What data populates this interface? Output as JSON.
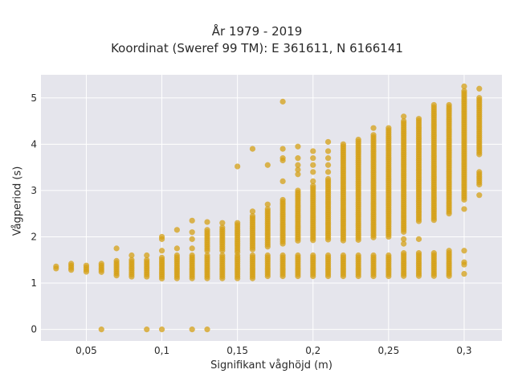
{
  "chart_data": {
    "type": "scatter",
    "title": "År 1979 - 2019",
    "subtitle": "Koordinat (Sweref 99 TM): E 361611, N 6166141",
    "xlabel": "Signifikant våghöjd (m)",
    "ylabel": "Vågperiod (s)",
    "xlim": [
      0.02,
      0.325
    ],
    "ylim": [
      -0.25,
      5.5
    ],
    "xticks": [
      {
        "value": 0.05,
        "label": "0,05"
      },
      {
        "value": 0.1,
        "label": "0,1"
      },
      {
        "value": 0.15,
        "label": "0,15"
      },
      {
        "value": 0.2,
        "label": "0,2"
      },
      {
        "value": 0.25,
        "label": "0,25"
      },
      {
        "value": 0.3,
        "label": "0,3"
      }
    ],
    "yticks": [
      {
        "value": 0,
        "label": "0"
      },
      {
        "value": 1,
        "label": "1"
      },
      {
        "value": 2,
        "label": "2"
      },
      {
        "value": 3,
        "label": "3"
      },
      {
        "value": 4,
        "label": "4"
      },
      {
        "value": 5,
        "label": "5"
      }
    ],
    "grid": true,
    "background": "#e5e5ec",
    "point_color": "#d4a017",
    "columns": [
      {
        "x": 0.03,
        "ranges": [
          [
            1.3,
            1.36
          ]
        ],
        "points": []
      },
      {
        "x": 0.04,
        "ranges": [
          [
            1.28,
            1.42
          ]
        ],
        "points": []
      },
      {
        "x": 0.05,
        "ranges": [
          [
            1.22,
            1.38
          ]
        ],
        "points": []
      },
      {
        "x": 0.06,
        "ranges": [
          [
            1.2,
            1.42
          ]
        ],
        "points": [
          0
        ]
      },
      {
        "x": 0.07,
        "ranges": [
          [
            1.14,
            1.48
          ]
        ],
        "points": [
          1.75
        ]
      },
      {
        "x": 0.08,
        "ranges": [
          [
            1.12,
            1.5
          ]
        ],
        "points": [
          1.6
        ]
      },
      {
        "x": 0.09,
        "ranges": [
          [
            1.1,
            1.5
          ]
        ],
        "points": [
          0,
          1.6
        ]
      },
      {
        "x": 0.1,
        "ranges": [
          [
            1.08,
            1.55
          ]
        ],
        "points": [
          0,
          1.7,
          1.95,
          2.0
        ]
      },
      {
        "x": 0.11,
        "ranges": [
          [
            1.08,
            1.6
          ]
        ],
        "points": [
          1.75,
          2.15
        ]
      },
      {
        "x": 0.12,
        "ranges": [
          [
            1.08,
            1.6
          ]
        ],
        "points": [
          0,
          1.75,
          1.95,
          2.1,
          2.35
        ]
      },
      {
        "x": 0.13,
        "ranges": [
          [
            1.08,
            1.6
          ],
          [
            1.7,
            2.15
          ]
        ],
        "points": [
          0,
          2.32
        ]
      },
      {
        "x": 0.14,
        "ranges": [
          [
            1.08,
            1.6
          ],
          [
            1.7,
            2.2
          ]
        ],
        "points": [
          2.3
        ]
      },
      {
        "x": 0.15,
        "ranges": [
          [
            1.08,
            1.6
          ],
          [
            1.65,
            2.3
          ]
        ],
        "points": [
          3.52
        ]
      },
      {
        "x": 0.16,
        "ranges": [
          [
            1.1,
            1.6
          ],
          [
            1.7,
            2.45
          ]
        ],
        "points": [
          2.55,
          3.9
        ]
      },
      {
        "x": 0.17,
        "ranges": [
          [
            1.12,
            1.6
          ],
          [
            1.75,
            2.6
          ]
        ],
        "points": [
          2.7,
          3.55
        ]
      },
      {
        "x": 0.18,
        "ranges": [
          [
            1.12,
            1.6
          ],
          [
            1.85,
            2.8
          ]
        ],
        "points": [
          3.2,
          3.65,
          3.7,
          3.9,
          4.92
        ]
      },
      {
        "x": 0.19,
        "ranges": [
          [
            1.12,
            1.6
          ],
          [
            1.9,
            3.0
          ]
        ],
        "points": [
          3.35,
          3.45,
          3.55,
          3.7,
          3.95
        ]
      },
      {
        "x": 0.2,
        "ranges": [
          [
            1.12,
            1.6
          ],
          [
            1.9,
            3.1
          ]
        ],
        "points": [
          3.2,
          3.4,
          3.55,
          3.7,
          3.85
        ]
      },
      {
        "x": 0.21,
        "ranges": [
          [
            1.12,
            1.6
          ],
          [
            1.9,
            3.25
          ]
        ],
        "points": [
          3.4,
          3.55,
          3.7,
          3.85,
          4.05
        ]
      },
      {
        "x": 0.22,
        "ranges": [
          [
            1.12,
            1.6
          ],
          [
            1.9,
            3.5
          ],
          [
            3.55,
            4.0
          ]
        ],
        "points": []
      },
      {
        "x": 0.23,
        "ranges": [
          [
            1.12,
            1.6
          ],
          [
            1.9,
            4.1
          ]
        ],
        "points": []
      },
      {
        "x": 0.24,
        "ranges": [
          [
            1.12,
            1.6
          ],
          [
            1.95,
            4.2
          ]
        ],
        "points": [
          4.35
        ]
      },
      {
        "x": 0.25,
        "ranges": [
          [
            1.12,
            1.6
          ],
          [
            2.0,
            4.35
          ]
        ],
        "points": []
      },
      {
        "x": 0.26,
        "ranges": [
          [
            1.12,
            1.65
          ],
          [
            2.1,
            4.5
          ]
        ],
        "points": [
          1.85,
          1.95,
          4.6
        ]
      },
      {
        "x": 0.27,
        "ranges": [
          [
            1.12,
            1.65
          ],
          [
            2.3,
            4.55
          ]
        ],
        "points": [
          1.95
        ]
      },
      {
        "x": 0.28,
        "ranges": [
          [
            1.12,
            1.65
          ],
          [
            2.35,
            4.8
          ]
        ],
        "points": [
          4.85
        ]
      },
      {
        "x": 0.29,
        "ranges": [
          [
            1.12,
            1.65
          ],
          [
            2.5,
            4.85
          ]
        ],
        "points": [
          1.7
        ]
      },
      {
        "x": 0.3,
        "ranges": [
          [
            2.8,
            5.15
          ]
        ],
        "points": [
          1.2,
          1.4,
          1.45,
          1.7,
          2.6,
          5.25
        ]
      },
      {
        "x": 0.31,
        "ranges": [
          [
            3.1,
            3.4
          ],
          [
            3.75,
            5.0
          ]
        ],
        "points": [
          2.9,
          5.2
        ]
      }
    ]
  }
}
